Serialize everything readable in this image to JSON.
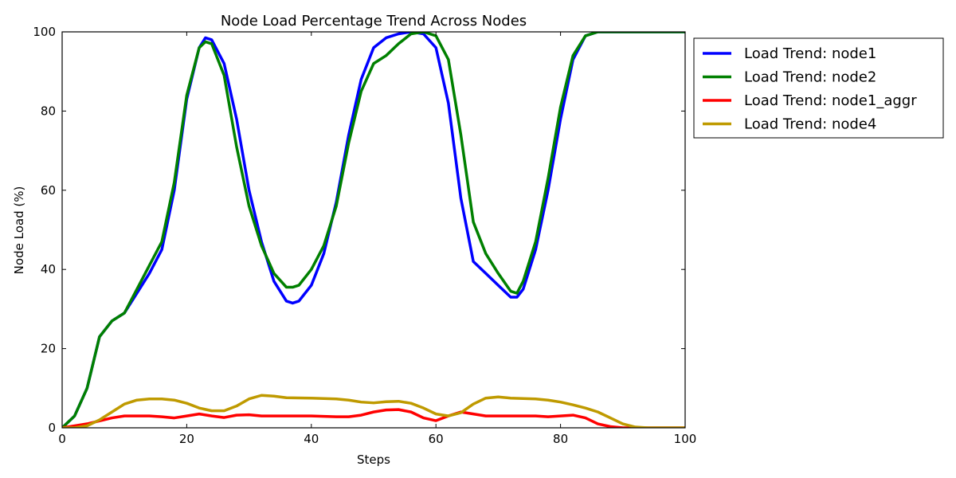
{
  "chart_data": {
    "type": "line",
    "title": "Node Load Percentage Trend Across Nodes",
    "xlabel": "Steps",
    "ylabel": "Node Load (%)",
    "xlim": [
      0,
      100
    ],
    "ylim": [
      0,
      100
    ],
    "xticks": [
      0,
      20,
      40,
      60,
      80,
      100
    ],
    "yticks": [
      0,
      20,
      40,
      60,
      80,
      100
    ],
    "grid": false,
    "legend_position": "outside-top-right",
    "series": [
      {
        "name": "Load Trend: node1",
        "color": "#0000ff",
        "points": [
          [
            0,
            0
          ],
          [
            2,
            3
          ],
          [
            4,
            10
          ],
          [
            6,
            23
          ],
          [
            8,
            27
          ],
          [
            10,
            29
          ],
          [
            12,
            34
          ],
          [
            14,
            39
          ],
          [
            16,
            45
          ],
          [
            18,
            60
          ],
          [
            20,
            83
          ],
          [
            22,
            96
          ],
          [
            23,
            98.5
          ],
          [
            24,
            98
          ],
          [
            26,
            92
          ],
          [
            28,
            78
          ],
          [
            30,
            60
          ],
          [
            32,
            47
          ],
          [
            34,
            37
          ],
          [
            36,
            32
          ],
          [
            37,
            31.5
          ],
          [
            38,
            32
          ],
          [
            40,
            36
          ],
          [
            42,
            44
          ],
          [
            44,
            57
          ],
          [
            46,
            74
          ],
          [
            48,
            88
          ],
          [
            50,
            96
          ],
          [
            52,
            98.5
          ],
          [
            54,
            99.5
          ],
          [
            56,
            100
          ],
          [
            58,
            99.5
          ],
          [
            60,
            96
          ],
          [
            62,
            82
          ],
          [
            64,
            58
          ],
          [
            66,
            42
          ],
          [
            68,
            39
          ],
          [
            70,
            36
          ],
          [
            72,
            33
          ],
          [
            73,
            33
          ],
          [
            74,
            35
          ],
          [
            76,
            45
          ],
          [
            78,
            60
          ],
          [
            80,
            78
          ],
          [
            82,
            93
          ],
          [
            84,
            99
          ],
          [
            86,
            100
          ],
          [
            90,
            100
          ],
          [
            100,
            100
          ]
        ]
      },
      {
        "name": "Load Trend: node2",
        "color": "#008000",
        "points": [
          [
            0,
            0
          ],
          [
            2,
            3
          ],
          [
            4,
            10
          ],
          [
            6,
            23
          ],
          [
            8,
            27
          ],
          [
            10,
            29
          ],
          [
            12,
            35
          ],
          [
            14,
            41
          ],
          [
            16,
            47
          ],
          [
            18,
            62
          ],
          [
            20,
            84
          ],
          [
            22,
            96
          ],
          [
            23,
            97.5
          ],
          [
            24,
            97
          ],
          [
            26,
            89
          ],
          [
            28,
            71
          ],
          [
            30,
            56
          ],
          [
            32,
            46
          ],
          [
            34,
            39
          ],
          [
            36,
            35.5
          ],
          [
            37,
            35.5
          ],
          [
            38,
            36
          ],
          [
            40,
            40
          ],
          [
            42,
            46
          ],
          [
            44,
            56
          ],
          [
            46,
            72
          ],
          [
            48,
            85
          ],
          [
            50,
            92
          ],
          [
            52,
            94
          ],
          [
            54,
            97
          ],
          [
            56,
            99.5
          ],
          [
            58,
            100
          ],
          [
            60,
            99
          ],
          [
            62,
            93
          ],
          [
            64,
            74
          ],
          [
            66,
            52
          ],
          [
            68,
            44
          ],
          [
            70,
            39
          ],
          [
            72,
            34.5
          ],
          [
            73,
            34
          ],
          [
            74,
            37
          ],
          [
            76,
            47
          ],
          [
            78,
            63
          ],
          [
            80,
            81
          ],
          [
            82,
            94
          ],
          [
            84,
            99
          ],
          [
            86,
            100
          ],
          [
            90,
            100
          ],
          [
            100,
            100
          ]
        ]
      },
      {
        "name": "Load Trend: node1_aggr",
        "color": "#ff0000",
        "points": [
          [
            0,
            0
          ],
          [
            4,
            1
          ],
          [
            8,
            2.5
          ],
          [
            10,
            3
          ],
          [
            12,
            3
          ],
          [
            14,
            3
          ],
          [
            16,
            2.8
          ],
          [
            18,
            2.5
          ],
          [
            20,
            3
          ],
          [
            22,
            3.5
          ],
          [
            24,
            3
          ],
          [
            26,
            2.6
          ],
          [
            28,
            3.2
          ],
          [
            30,
            3.3
          ],
          [
            32,
            3
          ],
          [
            36,
            3
          ],
          [
            40,
            3
          ],
          [
            44,
            2.8
          ],
          [
            46,
            2.8
          ],
          [
            48,
            3.2
          ],
          [
            50,
            4
          ],
          [
            52,
            4.5
          ],
          [
            54,
            4.6
          ],
          [
            56,
            4
          ],
          [
            58,
            2.5
          ],
          [
            60,
            1.8
          ],
          [
            62,
            3
          ],
          [
            64,
            4
          ],
          [
            66,
            3.5
          ],
          [
            68,
            3
          ],
          [
            72,
            3
          ],
          [
            76,
            3
          ],
          [
            78,
            2.8
          ],
          [
            80,
            3
          ],
          [
            82,
            3.2
          ],
          [
            84,
            2.5
          ],
          [
            86,
            1
          ],
          [
            88,
            0.3
          ],
          [
            90,
            0
          ],
          [
            100,
            0
          ]
        ]
      },
      {
        "name": "Load Trend: node4",
        "color": "#bf9a00",
        "points": [
          [
            0,
            0
          ],
          [
            2,
            0
          ],
          [
            4,
            0.5
          ],
          [
            6,
            2
          ],
          [
            8,
            4
          ],
          [
            10,
            6
          ],
          [
            12,
            7
          ],
          [
            14,
            7.3
          ],
          [
            16,
            7.3
          ],
          [
            18,
            7
          ],
          [
            20,
            6.2
          ],
          [
            22,
            5
          ],
          [
            24,
            4.3
          ],
          [
            26,
            4.3
          ],
          [
            28,
            5.5
          ],
          [
            30,
            7.3
          ],
          [
            32,
            8.2
          ],
          [
            34,
            8
          ],
          [
            36,
            7.6
          ],
          [
            40,
            7.5
          ],
          [
            44,
            7.3
          ],
          [
            46,
            7
          ],
          [
            48,
            6.5
          ],
          [
            50,
            6.3
          ],
          [
            52,
            6.6
          ],
          [
            54,
            6.7
          ],
          [
            56,
            6.2
          ],
          [
            58,
            5
          ],
          [
            60,
            3.5
          ],
          [
            62,
            3
          ],
          [
            64,
            3.8
          ],
          [
            66,
            6
          ],
          [
            68,
            7.5
          ],
          [
            70,
            7.8
          ],
          [
            72,
            7.5
          ],
          [
            76,
            7.3
          ],
          [
            78,
            7
          ],
          [
            80,
            6.5
          ],
          [
            82,
            5.8
          ],
          [
            84,
            5
          ],
          [
            86,
            4
          ],
          [
            88,
            2.5
          ],
          [
            90,
            1
          ],
          [
            92,
            0.2
          ],
          [
            94,
            0
          ],
          [
            100,
            0
          ]
        ]
      }
    ]
  }
}
